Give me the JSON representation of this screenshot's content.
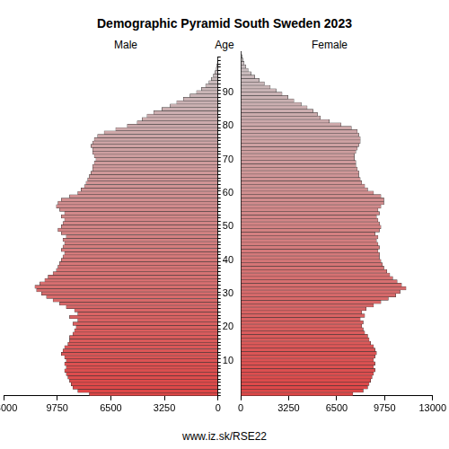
{
  "chart_data": {
    "type": "bar",
    "orientation": "horizontal",
    "title": "Demographic Pyramid South Sweden 2023",
    "y_label": "Age",
    "annotations": [
      "www.iz.sk/RSE22"
    ],
    "grid": false,
    "categories": [
      null,
      null,
      null,
      null,
      null,
      null,
      null,
      null,
      null,
      null,
      "10",
      null,
      null,
      null,
      null,
      null,
      null,
      null,
      null,
      null,
      "20",
      null,
      null,
      null,
      null,
      null,
      null,
      null,
      null,
      null,
      "30",
      null,
      null,
      null,
      null,
      null,
      null,
      null,
      null,
      null,
      "40",
      null,
      null,
      null,
      null,
      null,
      null,
      null,
      null,
      null,
      "50",
      null,
      null,
      null,
      null,
      null,
      null,
      null,
      null,
      null,
      "60",
      null,
      null,
      null,
      null,
      null,
      null,
      null,
      null,
      null,
      "70",
      null,
      null,
      null,
      null,
      null,
      null,
      null,
      null,
      null,
      "80",
      null,
      null,
      null,
      null,
      null,
      null,
      null,
      null,
      null,
      "90",
      null,
      null,
      null,
      null,
      null,
      null,
      null,
      null,
      null,
      null
    ],
    "series": [
      {
        "name": "Male",
        "values": [
          7800,
          8500,
          8800,
          8900,
          9000,
          9100,
          9200,
          9300,
          9200,
          9300,
          9200,
          9300,
          9500,
          9400,
          9300,
          9100,
          9000,
          9000,
          8800,
          8700,
          8600,
          8800,
          8500,
          9000,
          8500,
          8700,
          9200,
          9600,
          10000,
          10400,
          10700,
          11000,
          11100,
          10800,
          10500,
          10300,
          10000,
          9800,
          9700,
          9600,
          9500,
          9400,
          9300,
          9500,
          9400,
          9300,
          9400,
          9200,
          9500,
          9700,
          9500,
          9400,
          9300,
          9500,
          9300,
          9600,
          9800,
          9700,
          9500,
          9000,
          8500,
          8300,
          8100,
          8000,
          7900,
          7800,
          7700,
          7600,
          7600,
          7500,
          7400,
          7500,
          7600,
          7600,
          7700,
          7600,
          7500,
          7300,
          6900,
          6200,
          5500,
          4900,
          4600,
          4300,
          3900,
          3400,
          2900,
          2500,
          2100,
          1700,
          1300,
          1000,
          750,
          550,
          400,
          280,
          180,
          110,
          70,
          40,
          25
        ]
      },
      {
        "name": "Female",
        "values": [
          7600,
          8300,
          8600,
          8700,
          8800,
          8900,
          9000,
          9100,
          9000,
          9100,
          9000,
          9100,
          9200,
          9100,
          9000,
          8800,
          8700,
          8600,
          8400,
          8300,
          8200,
          8300,
          8100,
          8400,
          8200,
          8500,
          9000,
          9500,
          10000,
          10500,
          10800,
          11200,
          10900,
          10600,
          10300,
          10100,
          9900,
          9700,
          9600,
          9500,
          9400,
          9400,
          9300,
          9400,
          9300,
          9200,
          9300,
          9100,
          9400,
          9500,
          9400,
          9300,
          9200,
          9400,
          9300,
          9500,
          9700,
          9700,
          9500,
          9000,
          8600,
          8400,
          8200,
          8100,
          8000,
          8000,
          7900,
          7800,
          7800,
          7700,
          7700,
          7800,
          7900,
          8000,
          8100,
          8100,
          8000,
          7900,
          7500,
          6800,
          6000,
          5400,
          5200,
          4900,
          4500,
          4100,
          3600,
          3200,
          2800,
          2400,
          2000,
          1600,
          1250,
          950,
          700,
          500,
          350,
          230,
          150,
          90,
          50
        ]
      }
    ],
    "xlim": [
      0,
      13000
    ],
    "xticks": [
      0,
      3250,
      6500,
      9750,
      13000
    ]
  }
}
